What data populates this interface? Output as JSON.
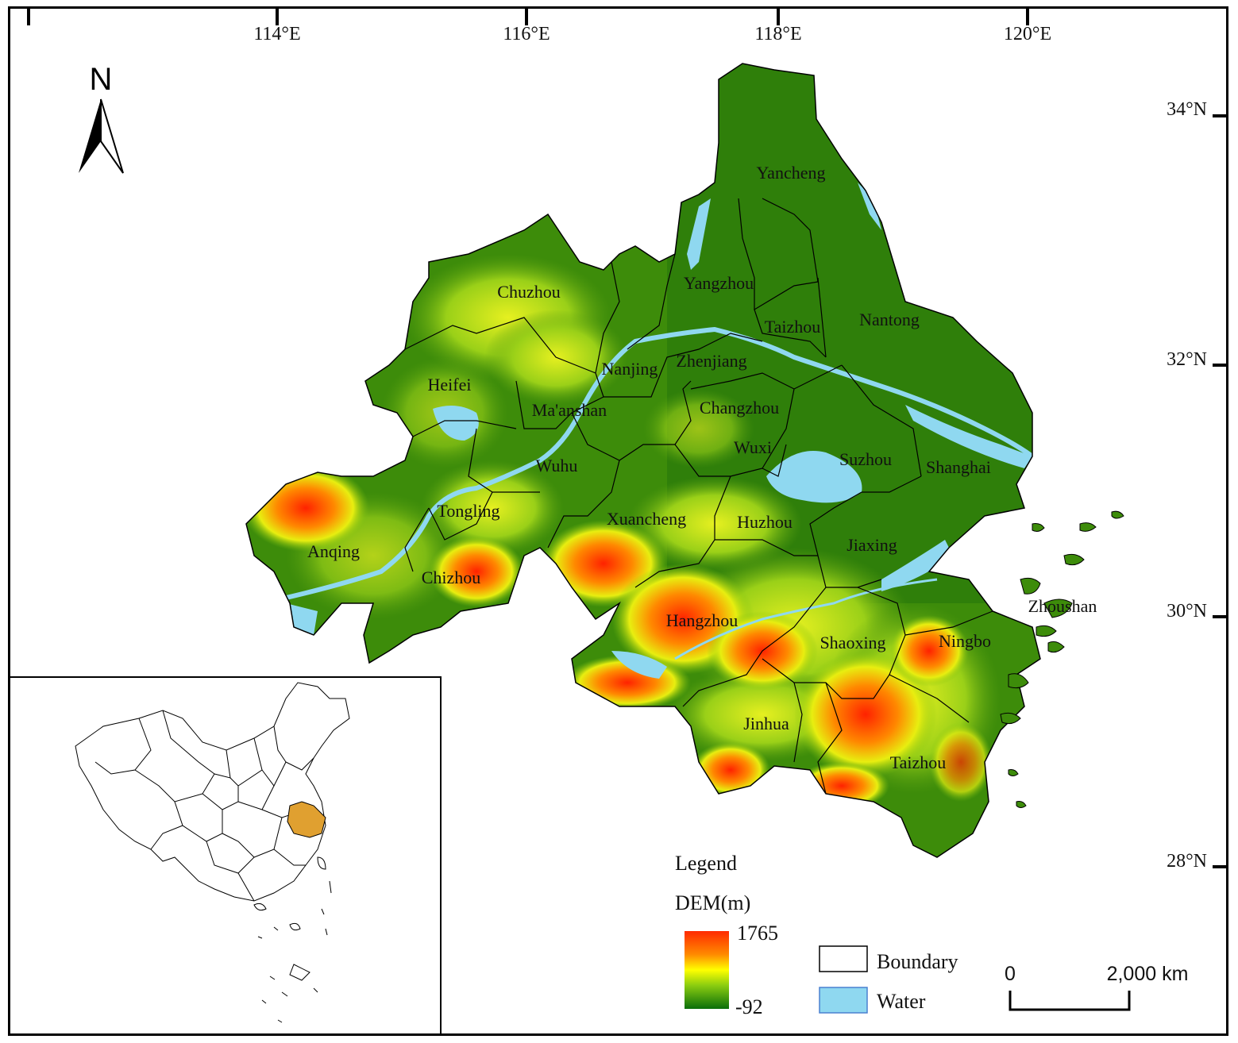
{
  "graticule": {
    "longitudes": [
      "114°E",
      "116°E",
      "118°E",
      "120°E"
    ],
    "latitudes": [
      "34°N",
      "32°N",
      "30°N",
      "28°N"
    ]
  },
  "north_arrow": {
    "label": "N",
    "icon": "north-arrow-icon"
  },
  "cities": [
    "Yancheng",
    "Chuzhou",
    "Yangzhou",
    "Taizhou",
    "Nantong",
    "Heifei",
    "Nanjing",
    "Zhenjiang",
    "Changzhou",
    "Ma'anshan",
    "Wuxi",
    "Suzhou",
    "Shanghai",
    "Wuhu",
    "Tongling",
    "Xuancheng",
    "Huzhou",
    "Anqing",
    "Jiaxing",
    "Chizhou",
    "Zhoushan",
    "Hangzhou",
    "Shaoxing",
    "Ningbo",
    "Jinhua",
    "Taizhou"
  ],
  "legend": {
    "title": "Legend",
    "dem_title": "DEM(m)",
    "dem_max": "1765",
    "dem_min": "-92",
    "boundary_label": "Boundary",
    "water_label": "Water",
    "colors": {
      "high": "#ff2a00",
      "mid": "#ffff00",
      "low": "#0a6e0a",
      "water": "#8fd8f0",
      "land": "#3d8c0a"
    }
  },
  "scale_bar": {
    "start": "0",
    "end": "2,000 km"
  },
  "inset": {
    "name": "china-locator-map",
    "highlight_color": "#e0a030"
  }
}
